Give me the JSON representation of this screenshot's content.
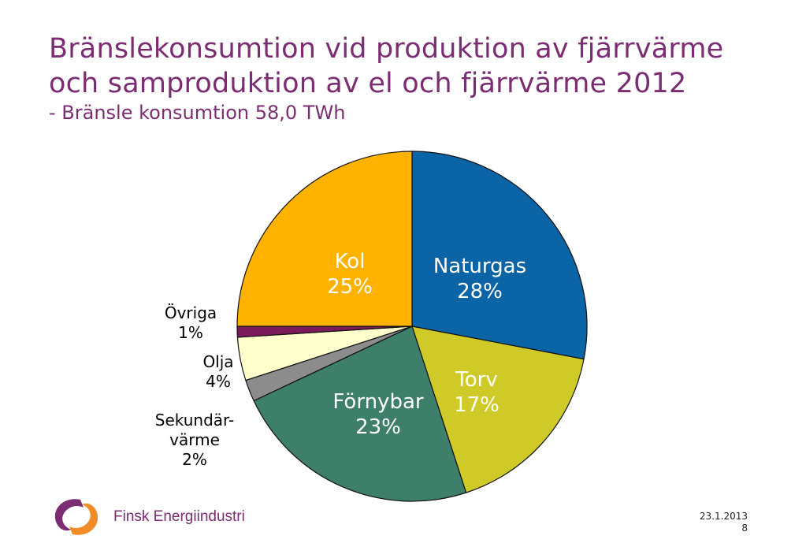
{
  "header": {
    "title_line1": "Bränslekonsumtion vid produktion av fjärrvärme",
    "title_line2": "och samproduktion av el och fjärrvärme 2012",
    "subtitle": "- Bränsle konsumtion 58,0 TWh"
  },
  "chart_data": {
    "type": "pie",
    "slices": [
      {
        "label": "Naturgas",
        "value": 28,
        "display": "28%",
        "color": "#0B64A5",
        "text_color": "#ffffff",
        "label_inside": true
      },
      {
        "label": "Torv",
        "value": 17,
        "display": "17%",
        "color": "#CFCA27",
        "text_color": "#ffffff",
        "label_inside": true
      },
      {
        "label": "Förnybar",
        "value": 23,
        "display": "23%",
        "color": "#3E7F6B",
        "text_color": "#ffffff",
        "label_inside": true
      },
      {
        "label": "Sekundär-värme",
        "label_lines": [
          "Sekundär-",
          "värme"
        ],
        "value": 2,
        "display": "2%",
        "color": "#8C8C8C",
        "text_color": "#000000",
        "label_inside": false
      },
      {
        "label": "Olja",
        "value": 4,
        "display": "4%",
        "color": "#FFFFCC",
        "text_color": "#000000",
        "label_inside": false
      },
      {
        "label": "Övriga",
        "value": 1,
        "display": "1%",
        "color": "#7A1A5A",
        "text_color": "#000000",
        "label_inside": false
      },
      {
        "label": "Kol",
        "value": 25,
        "display": "25%",
        "color": "#FFB200",
        "text_color": "#ffffff",
        "label_inside": true
      }
    ],
    "start": "12 o'clock",
    "direction": "clockwise"
  },
  "footer": {
    "brand": "Finsk Energiindustri",
    "date": "23.1.2013",
    "page": "8"
  },
  "colors": {
    "title": "#7B2C72",
    "logo_purple": "#7B2C72",
    "logo_orange": "#F28C28"
  }
}
